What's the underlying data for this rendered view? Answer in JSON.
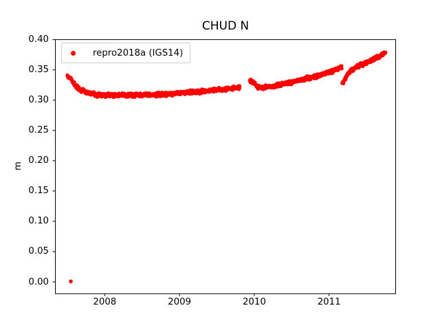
{
  "chart_data": {
    "type": "scatter",
    "title": "CHUD N",
    "xlabel": "",
    "ylabel": "m",
    "grid": false,
    "legend_position": "upper left",
    "xlim": [
      2007.335,
      2011.895
    ],
    "ylim": [
      -0.0195,
      0.4
    ],
    "xticks": [
      "2008",
      "2009",
      "2010",
      "2011"
    ],
    "yticks": [
      "0.00",
      "0.05",
      "0.10",
      "0.15",
      "0.20",
      "0.25",
      "0.30",
      "0.35",
      "0.40"
    ],
    "axis_color": "#000000",
    "series": [
      {
        "name": "repro2018a (IGS14)",
        "color": "#ff0000",
        "marker": "point",
        "marker_radius_px": 2.6,
        "points_per_year": 360,
        "jitter": 0.0045,
        "seed": 42,
        "outliers": [
          [
            2007.546,
            0.0008
          ]
        ],
        "segments": [
          {
            "x_start": 2007.5,
            "x_end": 2009.805,
            "trend": [
              [
                2007.5,
                0.34
              ],
              [
                2007.545,
                0.3365
              ],
              [
                2007.575,
                0.329
              ],
              [
                2007.62,
                0.323
              ],
              [
                2007.68,
                0.317
              ],
              [
                2007.76,
                0.3125
              ],
              [
                2007.9,
                0.309
              ],
              [
                2008.1,
                0.308
              ],
              [
                2008.4,
                0.3085
              ],
              [
                2008.7,
                0.309
              ],
              [
                2009.0,
                0.3115
              ],
              [
                2009.3,
                0.3145
              ],
              [
                2009.6,
                0.318
              ],
              [
                2009.805,
                0.321
              ]
            ]
          },
          {
            "x_start": 2009.94,
            "x_end": 2011.17,
            "trend": [
              [
                2009.94,
                0.332
              ],
              [
                2010.0,
                0.329
              ],
              [
                2010.04,
                0.3215
              ],
              [
                2010.12,
                0.3205
              ],
              [
                2010.3,
                0.3245
              ],
              [
                2010.45,
                0.328
              ],
              [
                2010.6,
                0.333
              ],
              [
                2010.75,
                0.337
              ],
              [
                2010.9,
                0.342
              ],
              [
                2011.0,
                0.346
              ],
              [
                2011.17,
                0.354
              ]
            ]
          },
          {
            "x_start": 2011.175,
            "x_end": 2011.755,
            "trend": [
              [
                2011.175,
                0.328
              ],
              [
                2011.21,
                0.334
              ],
              [
                2011.25,
                0.343
              ],
              [
                2011.3,
                0.35
              ],
              [
                2011.38,
                0.356
              ],
              [
                2011.48,
                0.361
              ],
              [
                2011.58,
                0.367
              ],
              [
                2011.68,
                0.3735
              ],
              [
                2011.755,
                0.379
              ]
            ]
          }
        ]
      }
    ]
  }
}
